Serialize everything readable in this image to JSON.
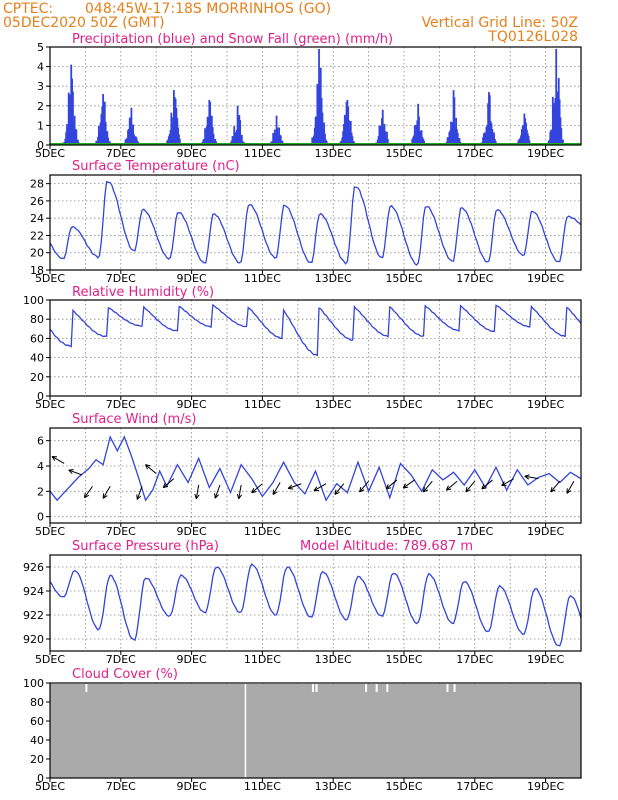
{
  "header": {
    "source": "CPTEC:",
    "location": "048:45W-17:18S  MORRINHOS (GO)",
    "run": "05DEC2020 50Z (GMT)",
    "grid_note": "Vertical Grid Line: 50Z",
    "model": "TQ0126L028"
  },
  "colors": {
    "blue": "#3344dd",
    "green": "#22aa22",
    "gray": "#aaaaaa",
    "title": "#e0208a",
    "header": "#e6801a"
  },
  "chart_data": [
    {
      "type": "bar",
      "title": "Precipitation (blue) and Snow Fall (green) (mm/h)",
      "x_ticks": [
        "5DEC",
        "7DEC",
        "9DEC",
        "11DEC",
        "13DEC",
        "15DEC",
        "17DEC",
        "19DEC"
      ],
      "ylim": [
        0,
        5
      ],
      "y_ticks": [
        0,
        1,
        2,
        3,
        4,
        5
      ],
      "series": [
        {
          "name": "Precipitation",
          "color": "#3344dd",
          "events": [
            {
              "day": 5.6,
              "peak": 4.1
            },
            {
              "day": 6.5,
              "peak": 2.6
            },
            {
              "day": 7.3,
              "peak": 1.9
            },
            {
              "day": 8.5,
              "peak": 2.8
            },
            {
              "day": 9.5,
              "peak": 2.3
            },
            {
              "day": 10.3,
              "peak": 2.0
            },
            {
              "day": 11.4,
              "peak": 1.5
            },
            {
              "day": 12.6,
              "peak": 4.9
            },
            {
              "day": 13.4,
              "peak": 2.3
            },
            {
              "day": 14.4,
              "peak": 1.8
            },
            {
              "day": 15.4,
              "peak": 2.1
            },
            {
              "day": 16.4,
              "peak": 2.8
            },
            {
              "day": 17.4,
              "peak": 2.7
            },
            {
              "day": 18.4,
              "peak": 1.6
            },
            {
              "day": 19.3,
              "peak": 4.9
            }
          ]
        },
        {
          "name": "Snow Fall",
          "color": "#22aa22",
          "value": 0
        }
      ]
    },
    {
      "type": "line",
      "title": "Surface Temperature (nC)",
      "x_ticks": [
        "5DEC",
        "7DEC",
        "9DEC",
        "11DEC",
        "13DEC",
        "15DEC",
        "17DEC",
        "19DEC"
      ],
      "ylim": [
        18,
        29
      ],
      "y_ticks": [
        18,
        20,
        22,
        24,
        26,
        28
      ],
      "daily_max": [
        23,
        28.3,
        25,
        24.7,
        24.5,
        25.6,
        25.5,
        24.5,
        27.7,
        25.4,
        25.4,
        25.2,
        25.0,
        24.8,
        24.2,
        25.8
      ],
      "daily_min": [
        19.3,
        19.5,
        20.2,
        19.3,
        18.8,
        18.8,
        19.4,
        18.8,
        18.8,
        19.4,
        18.6,
        19.0,
        18.9,
        19.7,
        18.9,
        22.2
      ]
    },
    {
      "type": "line",
      "title": "Relative Humidity (%)",
      "x_ticks": [
        "5DEC",
        "7DEC",
        "9DEC",
        "11DEC",
        "13DEC",
        "15DEC",
        "17DEC",
        "19DEC"
      ],
      "ylim": [
        0,
        100
      ],
      "y_ticks": [
        0,
        20,
        40,
        60,
        80,
        100
      ],
      "daily_max": [
        97,
        98,
        100,
        100,
        100,
        100,
        100,
        100,
        100,
        100,
        100,
        100,
        100,
        100,
        100,
        98
      ],
      "daily_min": [
        52,
        62,
        73,
        68,
        72,
        72,
        60,
        42,
        58,
        62,
        62,
        68,
        67,
        72,
        62,
        60
      ]
    },
    {
      "type": "line",
      "title": "Surface Wind (m/s)",
      "x_ticks": [
        "5DEC",
        "7DEC",
        "9DEC",
        "11DEC",
        "13DEC",
        "15DEC",
        "17DEC",
        "19DEC"
      ],
      "ylim": [
        -0.5,
        7
      ],
      "y_ticks": [
        0,
        2,
        4,
        6
      ],
      "speed": [
        [
          5.0,
          2.0
        ],
        [
          5.2,
          1.3
        ],
        [
          5.5,
          2.2
        ],
        [
          5.8,
          3.1
        ],
        [
          6.1,
          3.8
        ],
        [
          6.3,
          4.5
        ],
        [
          6.5,
          4.1
        ],
        [
          6.7,
          6.3
        ],
        [
          6.9,
          5.2
        ],
        [
          7.1,
          6.3
        ],
        [
          7.3,
          4.8
        ],
        [
          7.5,
          3.1
        ],
        [
          7.7,
          1.3
        ],
        [
          7.9,
          2.1
        ],
        [
          8.1,
          3.6
        ],
        [
          8.3,
          2.4
        ],
        [
          8.6,
          4.1
        ],
        [
          8.9,
          2.7
        ],
        [
          9.2,
          4.6
        ],
        [
          9.5,
          2.3
        ],
        [
          9.8,
          3.8
        ],
        [
          10.1,
          1.9
        ],
        [
          10.4,
          4.1
        ],
        [
          10.7,
          3.0
        ],
        [
          11.0,
          1.6
        ],
        [
          11.3,
          2.7
        ],
        [
          11.6,
          4.3
        ],
        [
          11.9,
          2.7
        ],
        [
          12.2,
          1.8
        ],
        [
          12.5,
          3.6
        ],
        [
          12.8,
          1.3
        ],
        [
          13.1,
          2.6
        ],
        [
          13.4,
          1.9
        ],
        [
          13.7,
          4.3
        ],
        [
          14.0,
          2.0
        ],
        [
          14.3,
          3.9
        ],
        [
          14.6,
          1.5
        ],
        [
          14.9,
          4.2
        ],
        [
          15.2,
          3.3
        ],
        [
          15.5,
          2.0
        ],
        [
          15.8,
          3.7
        ],
        [
          16.1,
          2.9
        ],
        [
          16.4,
          3.5
        ],
        [
          16.7,
          2.5
        ],
        [
          17.0,
          3.7
        ],
        [
          17.3,
          2.3
        ],
        [
          17.6,
          3.9
        ],
        [
          17.9,
          2.1
        ],
        [
          18.2,
          3.7
        ],
        [
          18.5,
          2.5
        ],
        [
          18.8,
          3.1
        ],
        [
          19.1,
          3.4
        ],
        [
          19.4,
          2.7
        ],
        [
          19.7,
          3.5
        ],
        [
          20.0,
          3.0
        ]
      ]
    },
    {
      "type": "line",
      "title": "Surface Pressure (hPa)",
      "annotation": "Model Altitude: 789.687 m",
      "x_ticks": [
        "5DEC",
        "7DEC",
        "9DEC",
        "11DEC",
        "13DEC",
        "15DEC",
        "17DEC",
        "19DEC"
      ],
      "ylim": [
        919,
        927
      ],
      "y_ticks": [
        920,
        922,
        924,
        926
      ],
      "daily_max": [
        925.7,
        925.3,
        925.1,
        925.3,
        926.0,
        926.2,
        926.0,
        925.6,
        925.2,
        925.5,
        925.4,
        924.8,
        924.4,
        924.2,
        923.6,
        922.5
      ],
      "daily_min": [
        923.5,
        920.8,
        919.9,
        921.9,
        922.2,
        922.2,
        922.0,
        921.8,
        921.6,
        921.9,
        921.3,
        921.3,
        920.6,
        920.4,
        919.4,
        919.0
      ]
    },
    {
      "type": "area",
      "title": "Cloud Cover (%)",
      "x_ticks": [
        "5DEC",
        "7DEC",
        "9DEC",
        "11DEC",
        "13DEC",
        "15DEC",
        "17DEC",
        "19DEC"
      ],
      "ylim": [
        0,
        100
      ],
      "y_ticks": [
        0,
        20,
        40,
        60,
        80,
        100
      ],
      "value": 99
    }
  ]
}
